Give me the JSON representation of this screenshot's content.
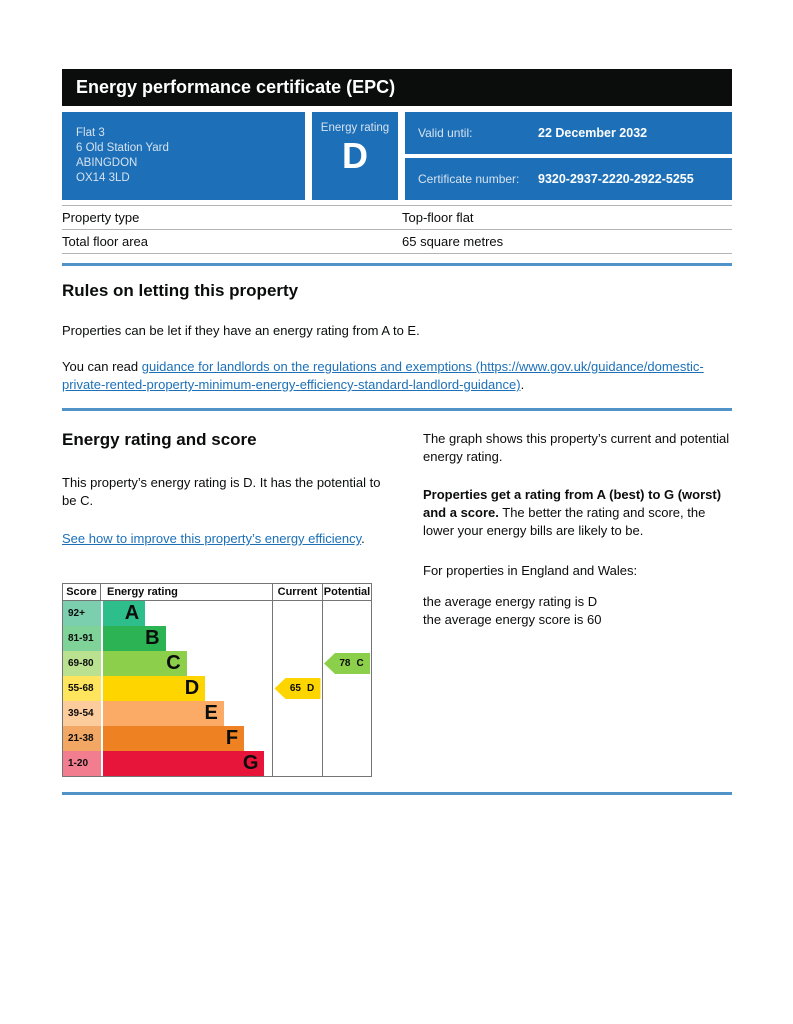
{
  "title": "Energy performance certificate (EPC)",
  "summary": {
    "box_color": "#1d70b8",
    "address_lines": [
      "Flat 3",
      "6 Old Station Yard",
      "ABINGDON",
      "OX14 3LD"
    ],
    "energy_rating_label": "Energy rating",
    "energy_rating": "D",
    "valid_until_label": "Valid until:",
    "valid_until": "22 December 2032",
    "certificate_number_label": "Certificate number:",
    "certificate_number": "9320-2937-2220-2922-5255"
  },
  "property_details": {
    "rows": [
      {
        "label": "Property type",
        "value": "Top-floor flat"
      },
      {
        "label": "Total floor area",
        "value": "65 square metres"
      }
    ]
  },
  "rules_section": {
    "heading": "Rules on letting this property",
    "paragraph": "Properties can be let if they have an energy rating from A to E.",
    "link_prefix": "You can read ",
    "link_text": "guidance for landlords on the regulations and exemptions (https://www.gov.uk/guidance/domestic-private-rented-property-minimum-energy-efficiency-standard-landlord-guidance)",
    "link_suffix": "."
  },
  "rating_section": {
    "heading": "Energy rating and score",
    "intro": "This property’s energy rating is D. It has the potential to be C.",
    "improve_link": "See how to improve this property’s energy efficiency",
    "improve_suffix": ".",
    "graph_caption": "The graph shows this property’s current and potential energy rating.",
    "explain_bold": "Properties get a rating from A (best) to G (worst) and a score.",
    "explain_rest": " The better the rating and score, the lower your energy bills are likely to be.",
    "regional_intro": "For properties in England and Wales:",
    "average_rating_line": "the average energy rating is D",
    "average_score_line": "the average energy score is 60"
  },
  "chart_data": {
    "type": "epc-rating-bands",
    "headers": {
      "score": "Score",
      "rating": "Energy rating",
      "current": "Current",
      "potential": "Potential"
    },
    "bands": [
      {
        "letter": "A",
        "score_range": "92+",
        "color": "#2dbe8c",
        "tint": "#7ccfae",
        "width_pct": "25%"
      },
      {
        "letter": "B",
        "score_range": "81-91",
        "color": "#2cb454",
        "tint": "#7fd398",
        "width_pct": "37%"
      },
      {
        "letter": "C",
        "score_range": "69-80",
        "color": "#8ccf4b",
        "tint": "#bae18f",
        "width_pct": "49.5%"
      },
      {
        "letter": "D",
        "score_range": "55-68",
        "color": "#ffd500",
        "tint": "#ffe45e",
        "width_pct": "60.5%"
      },
      {
        "letter": "E",
        "score_range": "39-54",
        "color": "#fbab66",
        "tint": "#fccc9d",
        "width_pct": "71.5%"
      },
      {
        "letter": "F",
        "score_range": "21-38",
        "color": "#ee8122",
        "tint": "#f3a765",
        "width_pct": "83.5%"
      },
      {
        "letter": "G",
        "score_range": "1-20",
        "color": "#e8153b",
        "tint": "#f27d8e",
        "width_pct": "95.5%"
      }
    ],
    "current": {
      "score": "65",
      "band": "D",
      "band_index": 3,
      "color": "#ffd500"
    },
    "potential": {
      "score": "78",
      "band": "C",
      "band_index": 2,
      "color": "#8ccf4b"
    }
  },
  "colors": {
    "gov_blue": "#1d70b8",
    "divider_blue": "#4f93c9",
    "header_black": "#0b0c0c",
    "link_blue": "#1d70b8"
  }
}
